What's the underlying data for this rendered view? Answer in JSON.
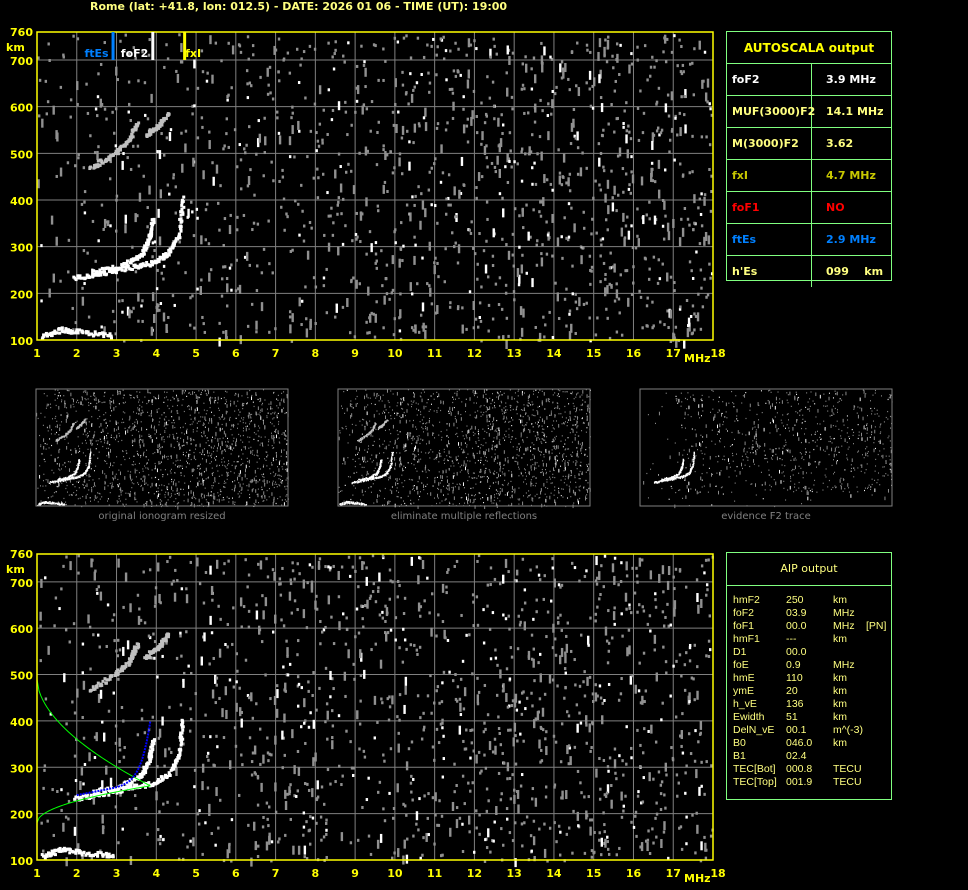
{
  "header": {
    "title": "Rome (lat: +41.8, lon: 012.5) - DATE: 2026 01 06 - TIME (UT): 19:00"
  },
  "axes": {
    "x_ticks": [
      1,
      2,
      3,
      4,
      5,
      6,
      7,
      8,
      9,
      10,
      11,
      12,
      13,
      14,
      15,
      16,
      17,
      18
    ],
    "x_unit": "MHz",
    "y_ticks": [
      760,
      700,
      600,
      500,
      400,
      300,
      200,
      100
    ],
    "y_unit": "km",
    "xlim": [
      1,
      18
    ],
    "ylim": [
      100,
      760
    ]
  },
  "markers": [
    {
      "label": "ftEs",
      "freq": 2.9,
      "color": "#0080ff"
    },
    {
      "label": "foF2",
      "freq": 3.9,
      "color": "#ffffff"
    },
    {
      "label": "fxI",
      "freq": 4.7,
      "color": "#ffff00"
    }
  ],
  "autoscala": {
    "title": "AUTOSCALA output",
    "rows": [
      {
        "key": "foF2",
        "value": "3.9 MHz",
        "color": "#ffffff"
      },
      {
        "key": "MUF(3000)F2",
        "value": "14.1 MHz",
        "color": "#ffff80"
      },
      {
        "key": "M(3000)F2",
        "value": "3.62",
        "color": "#ffff80"
      },
      {
        "key": "fxI",
        "value": "4.7 MHz",
        "color": "#c8c800"
      },
      {
        "key": "foF1",
        "value": "NO",
        "color": "#ff0000"
      },
      {
        "key": "ftEs",
        "value": "2.9 MHz",
        "color": "#0080ff"
      },
      {
        "key": "h'Es",
        "value": "099    km",
        "color": "#ffff80"
      }
    ]
  },
  "thumbnails": [
    {
      "caption": "original ionogram resized"
    },
    {
      "caption": "eliminate multiple reflections"
    },
    {
      "caption": "evidence F2 trace"
    }
  ],
  "aip": {
    "title": "AIP output",
    "rows": [
      [
        "hmF2",
        "250",
        "km",
        ""
      ],
      [
        "foF2",
        "03.9",
        "MHz",
        ""
      ],
      [
        "foF1",
        "00.0",
        "MHz",
        "[PN]"
      ],
      [
        "hmF1",
        "---",
        "km",
        ""
      ],
      [
        "D1",
        "00.0",
        "",
        ""
      ],
      [
        "foE",
        "0.9",
        "MHz",
        ""
      ],
      [
        "hmE",
        "110",
        "km",
        ""
      ],
      [
        "ymE",
        "20",
        "km",
        ""
      ],
      [
        "h_vE",
        "136",
        "km",
        ""
      ],
      [
        "Ewidth",
        "51",
        "km",
        ""
      ],
      [
        "DelN_vE",
        "00.1",
        "m^(-3)",
        ""
      ],
      [
        "B0",
        "046.0",
        "km",
        ""
      ],
      [
        "B1",
        "02.4",
        "",
        ""
      ],
      [
        "TEC[Bot]",
        "000.8",
        "TECU",
        ""
      ],
      [
        "TEC[Top]",
        "001.9",
        "TECU",
        ""
      ]
    ]
  },
  "colors": {
    "frame": "#ffff00",
    "grid": "#808080",
    "table_border": "#80ff80",
    "profile": "#00ff00",
    "trace_fit": "#0000ff"
  }
}
